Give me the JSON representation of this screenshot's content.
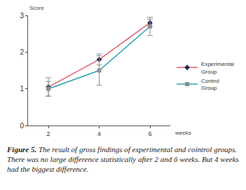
{
  "chart_data": {
    "type": "line",
    "ylabel": "Score",
    "xlabel": "weeks",
    "x": [
      2,
      4,
      6
    ],
    "xlim": [
      1.2,
      6.8
    ],
    "xticks": [
      2,
      4,
      6
    ],
    "ylim": [
      0,
      3
    ],
    "yticks": [
      0,
      1,
      2,
      3
    ],
    "grid": false,
    "legend": "right",
    "series": [
      {
        "name": "Experimental Group",
        "color": "#e0606e",
        "marker": "diamond",
        "values": [
          1.05,
          1.8,
          2.8
        ],
        "errors": [
          0.25,
          0.15,
          0.1
        ]
      },
      {
        "name": "Control Group",
        "color": "#2aa0b4",
        "marker": "square",
        "values": [
          1.0,
          1.5,
          2.7
        ],
        "errors": [
          0.2,
          0.4,
          0.25
        ]
      }
    ],
    "caption": {
      "label": "Figure 5.",
      "text": "The result of gross findings of experimental and cointrol groups. There was no large difference statistically after 2 and 6 weeks. But 4 weeks had the biggest difference."
    }
  }
}
